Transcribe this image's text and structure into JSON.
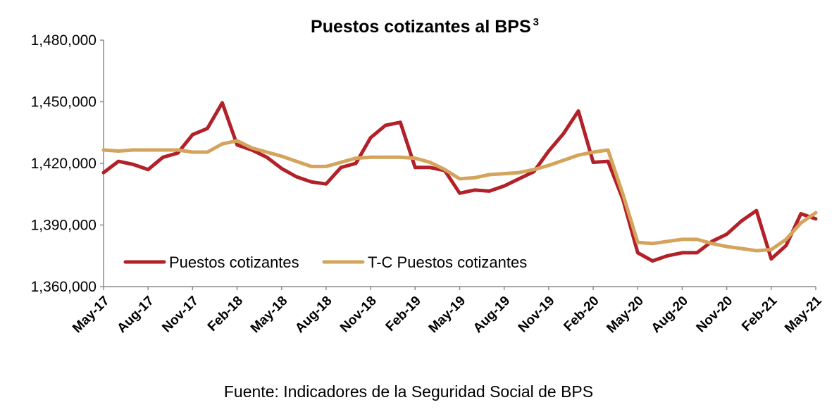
{
  "chart_data": {
    "type": "line",
    "title": "Puestos cotizantes al BPS",
    "title_superscript": "3",
    "source": "Fuente: Indicadores de la Seguridad Social de BPS",
    "ylim": [
      1360000,
      1480000
    ],
    "yticks": [
      1360000,
      1390000,
      1420000,
      1450000,
      1480000
    ],
    "ytick_labels": [
      "1,360,000",
      "1,390,000",
      "1,420,000",
      "1,450,000",
      "1,480,000"
    ],
    "x": [
      "May-17",
      "Jun-17",
      "Jul-17",
      "Aug-17",
      "Sep-17",
      "Oct-17",
      "Nov-17",
      "Dec-17",
      "Jan-18",
      "Feb-18",
      "Mar-18",
      "Apr-18",
      "May-18",
      "Jun-18",
      "Jul-18",
      "Aug-18",
      "Sep-18",
      "Oct-18",
      "Nov-18",
      "Dec-18",
      "Jan-19",
      "Feb-19",
      "Mar-19",
      "Apr-19",
      "May-19",
      "Jun-19",
      "Jul-19",
      "Aug-19",
      "Sep-19",
      "Oct-19",
      "Nov-19",
      "Dec-19",
      "Jan-20",
      "Feb-20",
      "Mar-20",
      "Apr-20",
      "May-20",
      "Jun-20",
      "Jul-20",
      "Aug-20",
      "Sep-20",
      "Oct-20",
      "Nov-20",
      "Dec-20",
      "Jan-21",
      "Feb-21",
      "Mar-21",
      "Apr-21",
      "May-21"
    ],
    "xtick_labels": [
      "May-17",
      "Aug-17",
      "Nov-17",
      "Feb-18",
      "May-18",
      "Aug-18",
      "Nov-18",
      "Feb-19",
      "May-19",
      "Aug-19",
      "Nov-19",
      "Feb-20",
      "May-20",
      "Aug-20",
      "Nov-20",
      "Feb-21",
      "May-21"
    ],
    "grid": false,
    "legend_position": "bottom-left",
    "series": [
      {
        "name": "Puestos cotizantes",
        "color": "#b22028",
        "values": [
          1415500,
          1421000,
          1419500,
          1417000,
          1423000,
          1425000,
          1434000,
          1437000,
          1449500,
          1429000,
          1426500,
          1423000,
          1417500,
          1413500,
          1411000,
          1410000,
          1418000,
          1420000,
          1432500,
          1438500,
          1440000,
          1418000,
          1418000,
          1416500,
          1405500,
          1407000,
          1406500,
          1409000,
          1412500,
          1416000,
          1426000,
          1434500,
          1445500,
          1420500,
          1421000,
          1402500,
          1376500,
          1372500,
          1375000,
          1376500,
          1376500,
          1382000,
          1385500,
          1392000,
          1397000,
          1373500,
          1380000,
          1395500,
          1393000
        ]
      },
      {
        "name": "T-C Puestos cotizantes",
        "color": "#d4a45c",
        "values": [
          1426500,
          1426000,
          1426500,
          1426500,
          1426500,
          1426500,
          1425500,
          1425500,
          1429500,
          1431000,
          1427500,
          1425500,
          1423500,
          1421000,
          1418500,
          1418500,
          1420500,
          1422500,
          1423000,
          1423000,
          1423000,
          1422500,
          1420500,
          1417000,
          1412500,
          1413000,
          1414500,
          1415000,
          1415500,
          1417000,
          1419000,
          1421500,
          1424000,
          1425500,
          1426500,
          1405000,
          1381500,
          1381000,
          1382000,
          1383000,
          1383000,
          1381000,
          1379500,
          1378500,
          1377500,
          1378000,
          1383000,
          1391000,
          1396000
        ]
      }
    ]
  }
}
